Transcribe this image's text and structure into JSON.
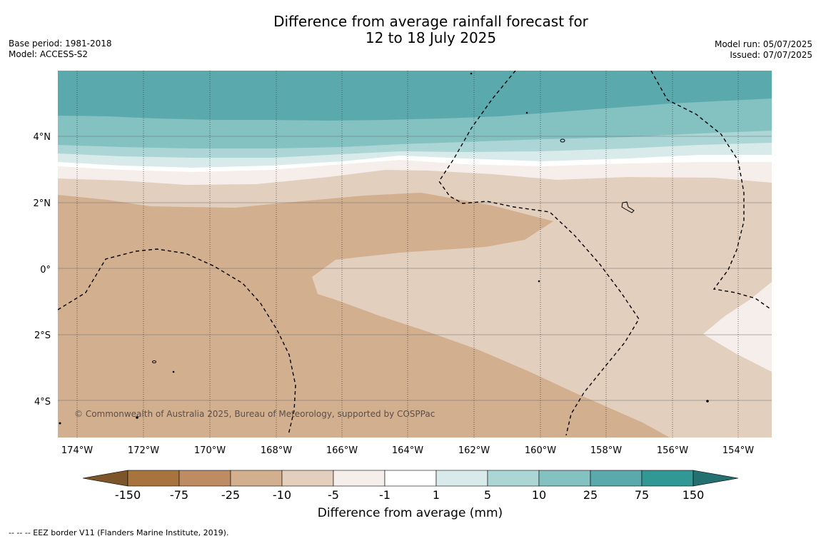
{
  "title": {
    "line1": "Difference from average rainfall forecast for",
    "line2": "12 to 18 July 2025"
  },
  "meta_left": {
    "base_period": "Base period: 1981-2018",
    "model": "Model: ACCESS-S2"
  },
  "meta_right": {
    "model_run": "Model run: 05/07/2025",
    "issued": "Issued: 07/07/2025"
  },
  "map": {
    "lat_labels": [
      "4°N",
      "2°N",
      "0°",
      "2°S",
      "4°S"
    ],
    "lon_labels": [
      "174°W",
      "172°W",
      "170°W",
      "168°W",
      "166°W",
      "164°W",
      "162°W",
      "160°W",
      "158°W",
      "156°W",
      "154°W"
    ],
    "copyright": "© Commonwealth of Australia 2025, Bureau of Meteorology, supported by COSPPac"
  },
  "colorbar": {
    "ticks": [
      "-150",
      "-75",
      "-25",
      "-10",
      "-5",
      "-1",
      "1",
      "5",
      "10",
      "25",
      "75",
      "150"
    ],
    "colors": [
      "#a8743e",
      "#be8c63",
      "#d2af8f",
      "#e3cfbd",
      "#f5eeea",
      "#ffffff",
      "#d8ebea",
      "#acd6d6",
      "#84c1c1",
      "#5aaaad",
      "#329896"
    ],
    "under_color": "#7d5528",
    "over_color": "#246f6f",
    "label": "Difference from average (mm)"
  },
  "footer": "--  --  -- EEZ border V11 (Flanders Marine Institute, 2019)."
}
